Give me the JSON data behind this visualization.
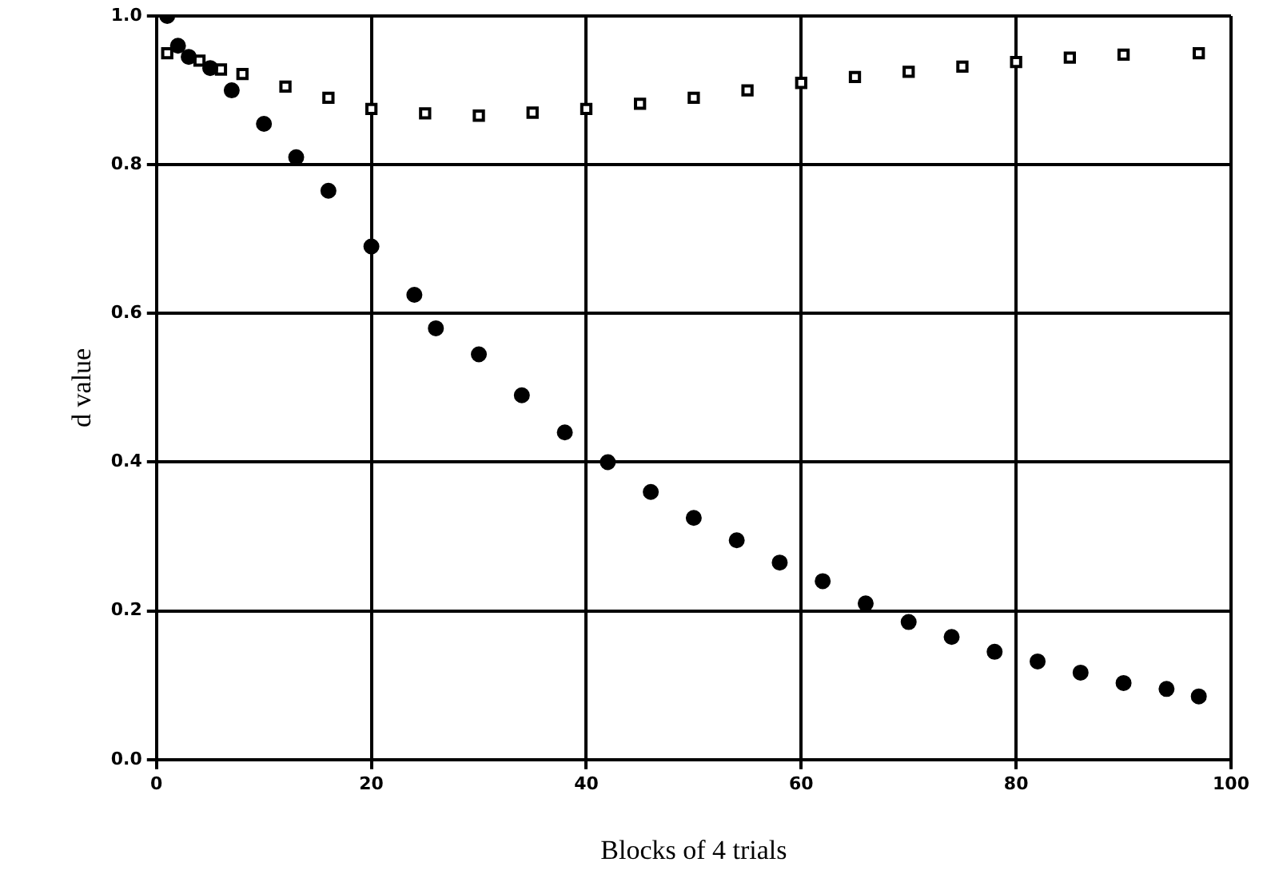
{
  "chart_data": {
    "type": "scatter",
    "xlabel": "Blocks of 4 trials",
    "ylabel": "d value",
    "xlim": [
      0,
      100
    ],
    "xticks": [
      0,
      20,
      40,
      60,
      80,
      100
    ],
    "ylim": [
      0,
      1
    ],
    "yticks": [
      {
        "value": 0,
        "label": "0.0"
      },
      {
        "value": 0.2,
        "label": "0.2"
      },
      {
        "value": 0.4,
        "label": "0.4"
      },
      {
        "value": 0.6,
        "label": "0.6"
      },
      {
        "value": 0.8,
        "label": "0.8"
      },
      {
        "value": 1,
        "label": "1.0"
      }
    ],
    "grid": true,
    "legend": false,
    "series": [
      {
        "color": "#000000",
        "marker": "circle",
        "x": [
          1,
          2,
          3,
          5,
          7,
          10,
          13,
          16,
          20,
          24,
          26,
          30,
          34,
          38,
          42,
          46,
          50,
          54,
          58,
          62,
          66,
          70,
          74,
          78,
          82,
          86,
          90,
          94,
          97
        ],
        "values": [
          1.0,
          0.96,
          0.945,
          0.93,
          0.9,
          0.855,
          0.81,
          0.765,
          0.69,
          0.625,
          0.58,
          0.545,
          0.49,
          0.44,
          0.4,
          0.36,
          0.325,
          0.295,
          0.265,
          0.24,
          0.21,
          0.185,
          0.165,
          0.145,
          0.132,
          0.117,
          0.103,
          0.095,
          0.085
        ]
      },
      {
        "color": "#000000",
        "marker": "square",
        "x": [
          1,
          4,
          6,
          8,
          12,
          16,
          20,
          25,
          30,
          35,
          40,
          45,
          50,
          55,
          60,
          65,
          70,
          75,
          80,
          85,
          90,
          97
        ],
        "values": [
          0.95,
          0.94,
          0.928,
          0.922,
          0.905,
          0.89,
          0.875,
          0.869,
          0.866,
          0.87,
          0.875,
          0.882,
          0.89,
          0.9,
          0.91,
          0.918,
          0.925,
          0.932,
          0.938,
          0.944,
          0.948,
          0.95
        ]
      }
    ]
  }
}
